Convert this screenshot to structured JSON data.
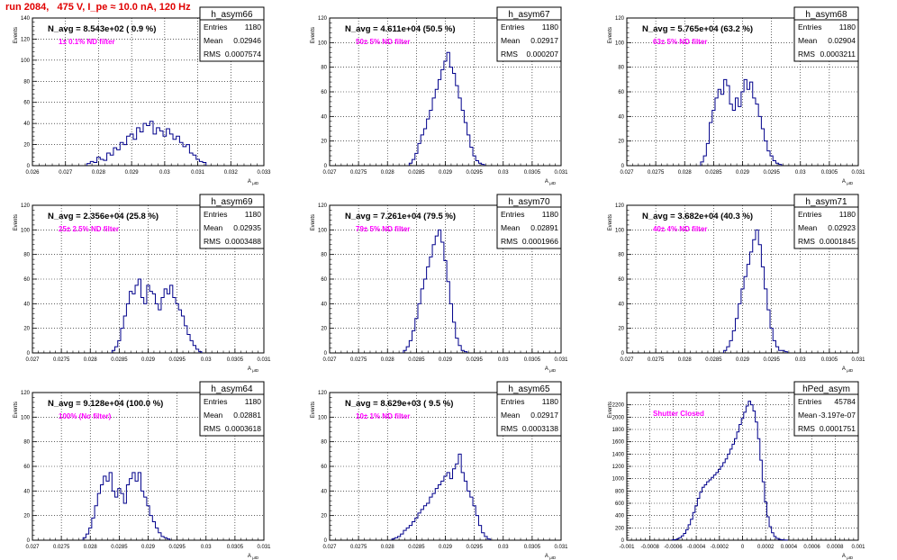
{
  "run_title": "run 2084,   475 V, I_pe ≈ 10.0 nA, 120 Hz",
  "y_axis_title": "Events",
  "x_axis_title_main": "A",
  "x_axis_title_sub": "μID",
  "colors": {
    "hist": "#00008b",
    "run_title": "#e00000",
    "filter_label": "#ff00ff",
    "grid": "#000000"
  },
  "chart_data": [
    {
      "type": "histogram",
      "name": "h_asym66",
      "stats": {
        "entries": "1180",
        "mean": "0.02946",
        "rms": "0.0007574"
      },
      "n_avg": "N_avg = 8.543e+02 ( 0.9 %)",
      "filter_label": "1± 0.1% ND filter",
      "xlim": [
        0.026,
        0.033
      ],
      "ylim": [
        0,
        140
      ],
      "xticks": [
        0.026,
        0.027,
        0.028,
        0.029,
        0.03,
        0.031,
        0.032,
        0.033
      ],
      "xtick_labels": [
        "0.026",
        "0.027",
        "0.028",
        "0.029",
        "0.03",
        "0.031",
        "0.032",
        "0.033"
      ],
      "yticks": [
        0,
        20,
        40,
        60,
        80,
        100,
        120,
        140
      ],
      "ytick_labels": [
        "0",
        "20",
        "40",
        "60",
        "80",
        "100",
        "120",
        "140"
      ],
      "x": [
        0.0277,
        0.0278,
        0.0279,
        0.028,
        0.0281,
        0.0282,
        0.0283,
        0.0284,
        0.0285,
        0.0286,
        0.0287,
        0.0288,
        0.0289,
        0.029,
        0.0291,
        0.0292,
        0.0293,
        0.0294,
        0.0295,
        0.0296,
        0.0297,
        0.0298,
        0.0299,
        0.03,
        0.0301,
        0.0302,
        0.0303,
        0.0304,
        0.0305,
        0.0306,
        0.0307,
        0.0308,
        0.0309,
        0.031,
        0.0311,
        0.0312
      ],
      "bin_width": 0.0001,
      "values": [
        2,
        4,
        3,
        8,
        6,
        5,
        12,
        10,
        17,
        15,
        22,
        20,
        28,
        30,
        25,
        36,
        32,
        40,
        38,
        42,
        30,
        36,
        33,
        28,
        35,
        30,
        25,
        28,
        22,
        18,
        20,
        12,
        10,
        6,
        4,
        3
      ]
    },
    {
      "type": "histogram",
      "name": "h_asym67",
      "stats": {
        "entries": "1180",
        "mean": "0.02917",
        "rms": "0.000207"
      },
      "n_avg": "N_avg = 4.611e+04 (50.5 %)",
      "filter_label": "50± 5% ND filter",
      "xlim": [
        0.027,
        0.031
      ],
      "ylim": [
        0,
        120
      ],
      "xticks": [
        0.027,
        0.0275,
        0.028,
        0.0285,
        0.029,
        0.0295,
        0.03,
        0.0305,
        0.031
      ],
      "xtick_labels": [
        "0.027",
        "0.0275",
        "0.028",
        "0.0285",
        "0.029",
        "0.0295",
        "0.03",
        "0.0305",
        "0.031"
      ],
      "yticks": [
        0,
        20,
        40,
        60,
        80,
        100,
        120
      ],
      "ytick_labels": [
        "0",
        "20",
        "40",
        "60",
        "80",
        "100",
        "120"
      ],
      "x": [
        0.0284,
        0.02845,
        0.0285,
        0.02855,
        0.0286,
        0.02865,
        0.0287,
        0.02875,
        0.0288,
        0.02885,
        0.0289,
        0.02895,
        0.029,
        0.02905,
        0.0291,
        0.02915,
        0.0292,
        0.02925,
        0.0293,
        0.02935,
        0.0294,
        0.02945,
        0.0295,
        0.02955,
        0.0296,
        0.02965
      ],
      "bin_width": 5e-05,
      "values": [
        2,
        5,
        10,
        18,
        25,
        30,
        38,
        45,
        55,
        62,
        70,
        78,
        85,
        92,
        80,
        75,
        65,
        55,
        45,
        35,
        25,
        15,
        8,
        4,
        2,
        1
      ]
    },
    {
      "type": "histogram",
      "name": "h_asym68",
      "stats": {
        "entries": "1180",
        "mean": "0.02904",
        "rms": "0.0003211"
      },
      "n_avg": "N_avg = 5.765e+04 (63.2 %)",
      "filter_label": "63± 5% ND filter",
      "xlim": [
        0.027,
        0.031
      ],
      "ylim": [
        0,
        120
      ],
      "xticks": [
        0.027,
        0.0275,
        0.028,
        0.0285,
        0.029,
        0.0295,
        0.03,
        0.0305,
        0.031
      ],
      "xtick_labels": [
        "0.027",
        "0.0275",
        "0.028",
        "0.0285",
        "0.029",
        "0.0295",
        "0.03",
        "0.0305",
        "0.031"
      ],
      "yticks": [
        0,
        20,
        40,
        60,
        80,
        100,
        120
      ],
      "ytick_labels": [
        "0",
        "20",
        "40",
        "60",
        "80",
        "100",
        "120"
      ],
      "x": [
        0.0283,
        0.02835,
        0.0284,
        0.02845,
        0.0285,
        0.02855,
        0.0286,
        0.02865,
        0.0287,
        0.02875,
        0.0288,
        0.02885,
        0.0289,
        0.02895,
        0.029,
        0.02905,
        0.0291,
        0.02915,
        0.0292,
        0.02925,
        0.0293,
        0.02935,
        0.0294,
        0.02945,
        0.0295,
        0.02955,
        0.0296,
        0.02965
      ],
      "bin_width": 5e-05,
      "values": [
        3,
        8,
        18,
        35,
        45,
        55,
        62,
        58,
        70,
        65,
        50,
        45,
        55,
        48,
        60,
        70,
        62,
        68,
        55,
        50,
        40,
        30,
        20,
        12,
        8,
        4,
        2,
        1
      ]
    },
    {
      "type": "histogram",
      "name": "h_asym69",
      "stats": {
        "entries": "1180",
        "mean": "0.02935",
        "rms": "0.0003488"
      },
      "n_avg": "N_avg = 2.356e+04 (25.8 %)",
      "filter_label": "25± 2.5% ND filter",
      "xlim": [
        0.027,
        0.031
      ],
      "ylim": [
        0,
        120
      ],
      "xticks": [
        0.027,
        0.0275,
        0.028,
        0.0285,
        0.029,
        0.0295,
        0.03,
        0.0305,
        0.031
      ],
      "xtick_labels": [
        "0.027",
        "0.0275",
        "0.028",
        "0.0285",
        "0.029",
        "0.0295",
        "0.03",
        "0.0305",
        "0.031"
      ],
      "yticks": [
        0,
        20,
        40,
        60,
        80,
        100,
        120
      ],
      "ytick_labels": [
        "0",
        "20",
        "40",
        "60",
        "80",
        "100",
        "120"
      ],
      "x": [
        0.0284,
        0.02845,
        0.0285,
        0.02855,
        0.0286,
        0.02865,
        0.0287,
        0.02875,
        0.0288,
        0.02885,
        0.0289,
        0.02895,
        0.029,
        0.02905,
        0.0291,
        0.02915,
        0.0292,
        0.02925,
        0.0293,
        0.02935,
        0.0294,
        0.02945,
        0.0295,
        0.02955,
        0.0296,
        0.02965,
        0.0297,
        0.02975,
        0.0298,
        0.02985,
        0.0299
      ],
      "bin_width": 5e-05,
      "values": [
        2,
        5,
        10,
        20,
        30,
        40,
        50,
        48,
        55,
        60,
        45,
        40,
        55,
        50,
        48,
        40,
        35,
        45,
        52,
        48,
        55,
        45,
        40,
        35,
        30,
        22,
        15,
        10,
        6,
        3,
        1
      ]
    },
    {
      "type": "histogram",
      "name": "h_asym70",
      "stats": {
        "entries": "1180",
        "mean": "0.02891",
        "rms": "0.0001966"
      },
      "n_avg": "N_avg = 7.261e+04 (79.5 %)",
      "filter_label": "79± 5% ND filter",
      "xlim": [
        0.027,
        0.031
      ],
      "ylim": [
        0,
        120
      ],
      "xticks": [
        0.027,
        0.0275,
        0.028,
        0.0285,
        0.029,
        0.0295,
        0.03,
        0.0305,
        0.031
      ],
      "xtick_labels": [
        "0.027",
        "0.0275",
        "0.028",
        "0.0285",
        "0.029",
        "0.0295",
        "0.03",
        "0.0305",
        "0.031"
      ],
      "yticks": [
        0,
        20,
        40,
        60,
        80,
        100,
        120
      ],
      "ytick_labels": [
        "0",
        "20",
        "40",
        "60",
        "80",
        "100",
        "120"
      ],
      "x": [
        0.0283,
        0.02835,
        0.0284,
        0.02845,
        0.0285,
        0.02855,
        0.0286,
        0.02865,
        0.0287,
        0.02875,
        0.0288,
        0.02885,
        0.0289,
        0.02895,
        0.029,
        0.02905,
        0.0291,
        0.02915,
        0.0292,
        0.02925,
        0.0293,
        0.02935
      ],
      "bin_width": 5e-05,
      "values": [
        2,
        5,
        10,
        18,
        28,
        40,
        52,
        60,
        70,
        78,
        88,
        95,
        100,
        90,
        75,
        58,
        40,
        25,
        12,
        6,
        2,
        1
      ]
    },
    {
      "type": "histogram",
      "name": "h_asym71",
      "stats": {
        "entries": "1180",
        "mean": "0.02923",
        "rms": "0.0001845"
      },
      "n_avg": "N_avg = 3.682e+04 (40.3 %)",
      "filter_label": "40± 4% ND filter",
      "xlim": [
        0.027,
        0.031
      ],
      "ylim": [
        0,
        120
      ],
      "xticks": [
        0.027,
        0.0275,
        0.028,
        0.0285,
        0.029,
        0.0295,
        0.03,
        0.0305,
        0.031
      ],
      "xtick_labels": [
        "0.027",
        "0.0275",
        "0.028",
        "0.0285",
        "0.029",
        "0.0295",
        "0.03",
        "0.0305",
        "0.031"
      ],
      "yticks": [
        0,
        20,
        40,
        60,
        80,
        100,
        120
      ],
      "ytick_labels": [
        "0",
        "20",
        "40",
        "60",
        "80",
        "100",
        "120"
      ],
      "x": [
        0.0287,
        0.02875,
        0.0288,
        0.02885,
        0.0289,
        0.02895,
        0.029,
        0.02905,
        0.0291,
        0.02915,
        0.0292,
        0.02925,
        0.0293,
        0.02935,
        0.0294,
        0.02945,
        0.0295,
        0.02955,
        0.0296,
        0.02965,
        0.0297,
        0.02975
      ],
      "bin_width": 5e-05,
      "values": [
        2,
        5,
        10,
        18,
        28,
        40,
        52,
        62,
        72,
        82,
        92,
        100,
        88,
        70,
        52,
        35,
        20,
        10,
        5,
        2,
        2,
        1
      ]
    },
    {
      "type": "histogram",
      "name": "h_asym64",
      "stats": {
        "entries": "1180",
        "mean": "0.02881",
        "rms": "0.0003618"
      },
      "n_avg": "N_avg = 9.128e+04 (100.0 %)",
      "filter_label": "100% (No filter)",
      "xlim": [
        0.027,
        0.031
      ],
      "ylim": [
        0,
        120
      ],
      "xticks": [
        0.027,
        0.0275,
        0.028,
        0.0285,
        0.029,
        0.0295,
        0.03,
        0.0305,
        0.031
      ],
      "xtick_labels": [
        "0.027",
        "0.0275",
        "0.028",
        "0.0285",
        "0.029",
        "0.0295",
        "0.03",
        "0.0305",
        "0.031"
      ],
      "yticks": [
        0,
        20,
        40,
        60,
        80,
        100,
        120
      ],
      "ytick_labels": [
        "0",
        "20",
        "40",
        "60",
        "80",
        "100",
        "120"
      ],
      "x": [
        0.0279,
        0.02795,
        0.028,
        0.02805,
        0.0281,
        0.02815,
        0.0282,
        0.02825,
        0.0283,
        0.02835,
        0.0284,
        0.02845,
        0.0285,
        0.02855,
        0.0286,
        0.02865,
        0.0287,
        0.02875,
        0.0288,
        0.02885,
        0.0289,
        0.02895,
        0.029,
        0.02905,
        0.0291,
        0.02915,
        0.0292,
        0.02925,
        0.0293,
        0.02935
      ],
      "bin_width": 5e-05,
      "values": [
        2,
        5,
        10,
        18,
        28,
        38,
        45,
        52,
        48,
        55,
        40,
        35,
        42,
        38,
        30,
        45,
        50,
        55,
        48,
        55,
        40,
        35,
        28,
        20,
        15,
        10,
        6,
        3,
        2,
        1
      ]
    },
    {
      "type": "histogram",
      "name": "h_asym65",
      "stats": {
        "entries": "1180",
        "mean": "0.02917",
        "rms": "0.0003138"
      },
      "n_avg": "N_avg = 8.629e+03 ( 9.5 %)",
      "filter_label": "10± 1% ND filter",
      "xlim": [
        0.027,
        0.031
      ],
      "ylim": [
        0,
        120
      ],
      "xticks": [
        0.027,
        0.0275,
        0.028,
        0.0285,
        0.029,
        0.0295,
        0.03,
        0.0305,
        0.031
      ],
      "xtick_labels": [
        "0.027",
        "0.0275",
        "0.028",
        "0.0285",
        "0.029",
        "0.0295",
        "0.03",
        "0.0305",
        "0.031"
      ],
      "yticks": [
        0,
        20,
        40,
        60,
        80,
        100,
        120
      ],
      "ytick_labels": [
        "0",
        "20",
        "40",
        "60",
        "80",
        "100",
        "120"
      ],
      "x": [
        0.0281,
        0.02815,
        0.0282,
        0.02825,
        0.0283,
        0.02835,
        0.0284,
        0.02845,
        0.0285,
        0.02855,
        0.0286,
        0.02865,
        0.0287,
        0.02875,
        0.0288,
        0.02885,
        0.0289,
        0.02895,
        0.029,
        0.02905,
        0.0291,
        0.02915,
        0.0292,
        0.02925,
        0.0293,
        0.02935,
        0.0294,
        0.02945,
        0.0295,
        0.02955,
        0.0296,
        0.02965,
        0.0297,
        0.02975
      ],
      "bin_width": 5e-05,
      "values": [
        1,
        2,
        3,
        5,
        8,
        10,
        12,
        15,
        18,
        22,
        25,
        28,
        30,
        35,
        38,
        42,
        45,
        48,
        52,
        55,
        50,
        58,
        62,
        70,
        55,
        48,
        40,
        35,
        28,
        20,
        12,
        6,
        3,
        1
      ]
    },
    {
      "type": "histogram",
      "name": "hPed_asym",
      "stats": {
        "entries": "45784",
        "mean": "-3.197e-07",
        "rms": "0.0001751"
      },
      "n_avg": "",
      "filter_label": "Shutter Closed",
      "xlim": [
        -0.001,
        0.001
      ],
      "ylim": [
        0,
        2400
      ],
      "xticks": [
        -0.001,
        -0.0008,
        -0.0006,
        -0.0004,
        -0.0002,
        0,
        0.0002,
        0.0004,
        0.0006,
        0.0008,
        0.001
      ],
      "xtick_labels": [
        "-0.001",
        "-0.0008",
        "-0.0006",
        "-0.0004",
        "-0.0002",
        "0",
        "0.0002",
        "0.0004",
        "0.0006",
        "0.0008",
        "0.001"
      ],
      "yticks": [
        0,
        200,
        400,
        600,
        800,
        1000,
        1200,
        1400,
        1600,
        1800,
        2000,
        2200
      ],
      "ytick_labels": [
        "0",
        "200",
        "400",
        "600",
        "800",
        "1000",
        "1200",
        "1400",
        "1600",
        "1800",
        "2000",
        "2200"
      ],
      "x": [
        -0.0006,
        -0.00058,
        -0.00056,
        -0.00054,
        -0.00052,
        -0.0005,
        -0.00048,
        -0.00046,
        -0.00044,
        -0.00042,
        -0.0004,
        -0.00038,
        -0.00036,
        -0.00034,
        -0.00032,
        -0.0003,
        -0.00028,
        -0.00026,
        -0.00024,
        -0.00022,
        -0.0002,
        -0.00018,
        -0.00016,
        -0.00014,
        -0.00012,
        -0.0001,
        -8e-05,
        -6e-05,
        -4e-05,
        -2e-05,
        0,
        2e-05,
        4e-05,
        6e-05,
        8e-05,
        0.0001,
        0.00012,
        0.00014,
        0.00016,
        0.00018,
        0.0002,
        0.00022,
        0.00024,
        0.00026,
        0.00028,
        0.0003,
        0.00032,
        0.00034,
        0.00036,
        0.00038
      ],
      "bin_width": 2e-05,
      "values": [
        5,
        10,
        20,
        40,
        70,
        110,
        170,
        250,
        340,
        450,
        560,
        680,
        780,
        860,
        900,
        950,
        980,
        1020,
        1060,
        1100,
        1150,
        1200,
        1260,
        1320,
        1400,
        1480,
        1560,
        1650,
        1760,
        1880,
        1980,
        2080,
        2180,
        2260,
        2200,
        2100,
        1920,
        1650,
        1300,
        950,
        620,
        380,
        220,
        120,
        60,
        30,
        15,
        8,
        4,
        2
      ]
    }
  ]
}
